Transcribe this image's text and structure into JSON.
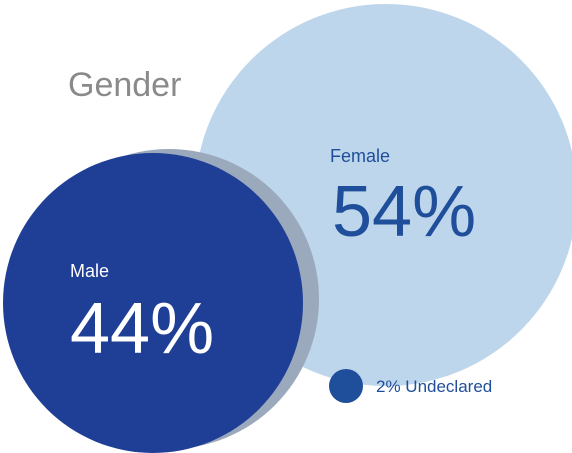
{
  "chart_data": {
    "type": "bubble",
    "title": "Gender",
    "categories": [
      "Female",
      "Male",
      null
    ],
    "values": [
      54,
      44,
      2
    ],
    "value_labels": [
      "54%",
      "44%",
      "2% Undeclared"
    ],
    "colors": [
      "#bed6ec",
      "#1f3f96",
      "#1f4e9a"
    ]
  }
}
